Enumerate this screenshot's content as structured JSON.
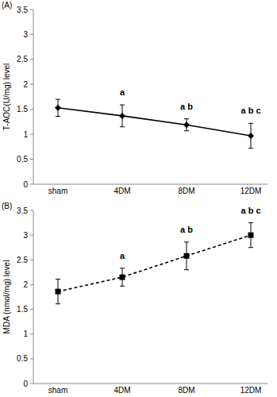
{
  "chart_data": [
    {
      "type": "line",
      "title": "(A)",
      "y_label": "T-AOC(U/mg) level",
      "categories": [
        "sham",
        "4DM",
        "8DM",
        "12DM"
      ],
      "values": [
        1.53,
        1.37,
        1.19,
        0.97
      ],
      "errors": [
        0.17,
        0.22,
        0.12,
        0.25
      ],
      "color": "#000000",
      "marker": "diamond",
      "line_style": "solid",
      "ylim": [
        0,
        3.5
      ],
      "yticks": [
        0,
        0.5,
        1,
        1.5,
        2,
        2.5,
        3,
        3.5
      ],
      "annotations": [
        {
          "category": "4DM",
          "text": "a"
        },
        {
          "category": "8DM",
          "text": "a b"
        },
        {
          "category": "12DM",
          "text": "a b c"
        }
      ]
    },
    {
      "type": "line",
      "title": "(B)",
      "y_label": "MDA (nmol/mg) level",
      "categories": [
        "sham",
        "4DM",
        "8DM",
        "12DM"
      ],
      "values": [
        1.86,
        2.15,
        2.58,
        3.0
      ],
      "errors": [
        0.25,
        0.18,
        0.28,
        0.25
      ],
      "color": "#000000",
      "marker": "square",
      "line_style": "dashed",
      "ylim": [
        0,
        3.5
      ],
      "yticks": [
        0,
        0.5,
        1,
        1.5,
        2,
        2.5,
        3,
        3.5
      ],
      "annotations": [
        {
          "category": "4DM",
          "text": "a"
        },
        {
          "category": "8DM",
          "text": "a b"
        },
        {
          "category": "12DM",
          "text": "a b c"
        }
      ]
    }
  ]
}
